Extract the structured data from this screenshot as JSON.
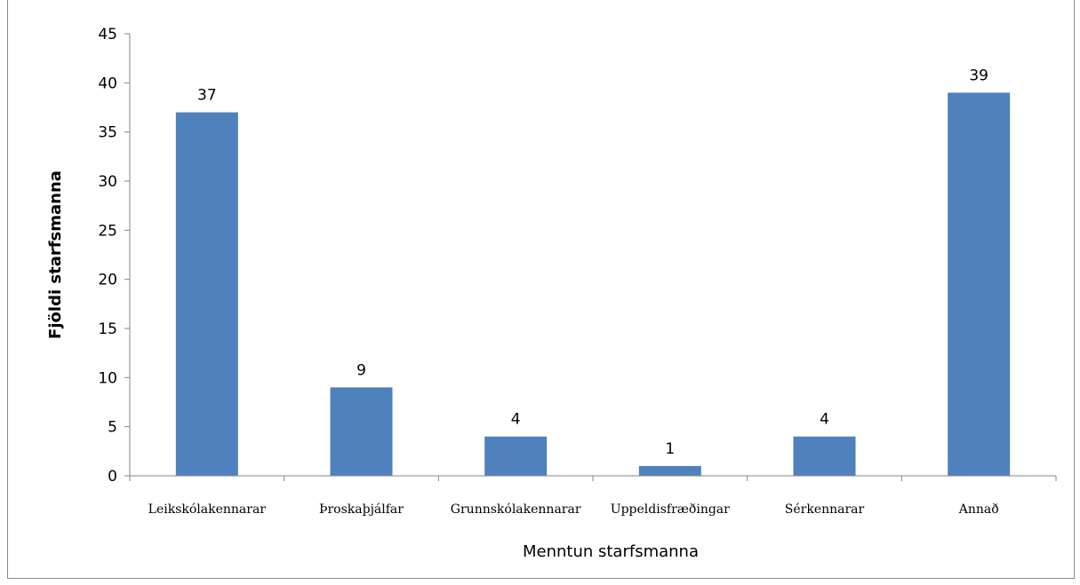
{
  "chart_data": {
    "type": "bar",
    "title": "",
    "xlabel": "Menntun starfsmanna",
    "ylabel": "Fjöldi starfsmanna",
    "ylim": [
      0,
      45
    ],
    "ytick_step": 5,
    "yticks": [
      "0",
      "5",
      "10",
      "15",
      "20",
      "25",
      "30",
      "35",
      "40",
      "45"
    ],
    "grid": false,
    "legend": "none",
    "bar_color": "#4f81bd",
    "categories": [
      "Leikskólakennarar",
      "Þroskaþjálfar",
      "Grunnskólakennarar",
      "Uppeldisfræðingar",
      "Sérkennarar",
      "Annað"
    ],
    "values": [
      37,
      9,
      4,
      1,
      4,
      39
    ],
    "data_labels": [
      "37",
      "9",
      "4",
      "1",
      "4",
      "39"
    ]
  }
}
